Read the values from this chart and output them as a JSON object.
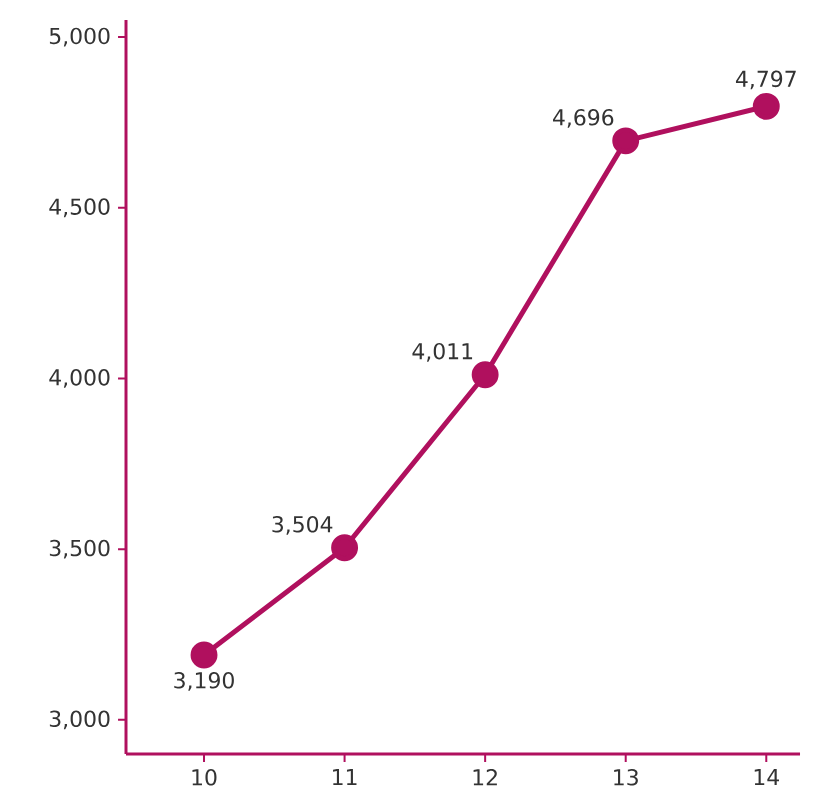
{
  "chart_data": {
    "type": "line",
    "categories": [
      "10",
      "11",
      "12",
      "13",
      "14"
    ],
    "values": [
      3190,
      3504,
      4011,
      4696,
      4797
    ],
    "value_labels": [
      "3,190",
      "3,504",
      "4,011",
      "4,696",
      "4,797"
    ],
    "color": "#b0105e",
    "marker": "circle",
    "line_style": "solid",
    "grid": false,
    "ylim": [
      2900,
      5050
    ],
    "yticks": [
      {
        "value": 3000,
        "label": "3,000"
      },
      {
        "value": 3500,
        "label": "3,500"
      },
      {
        "value": 4000,
        "label": "4,000"
      },
      {
        "value": 4500,
        "label": "4,500"
      },
      {
        "value": 5000,
        "label": "5,000"
      }
    ]
  }
}
